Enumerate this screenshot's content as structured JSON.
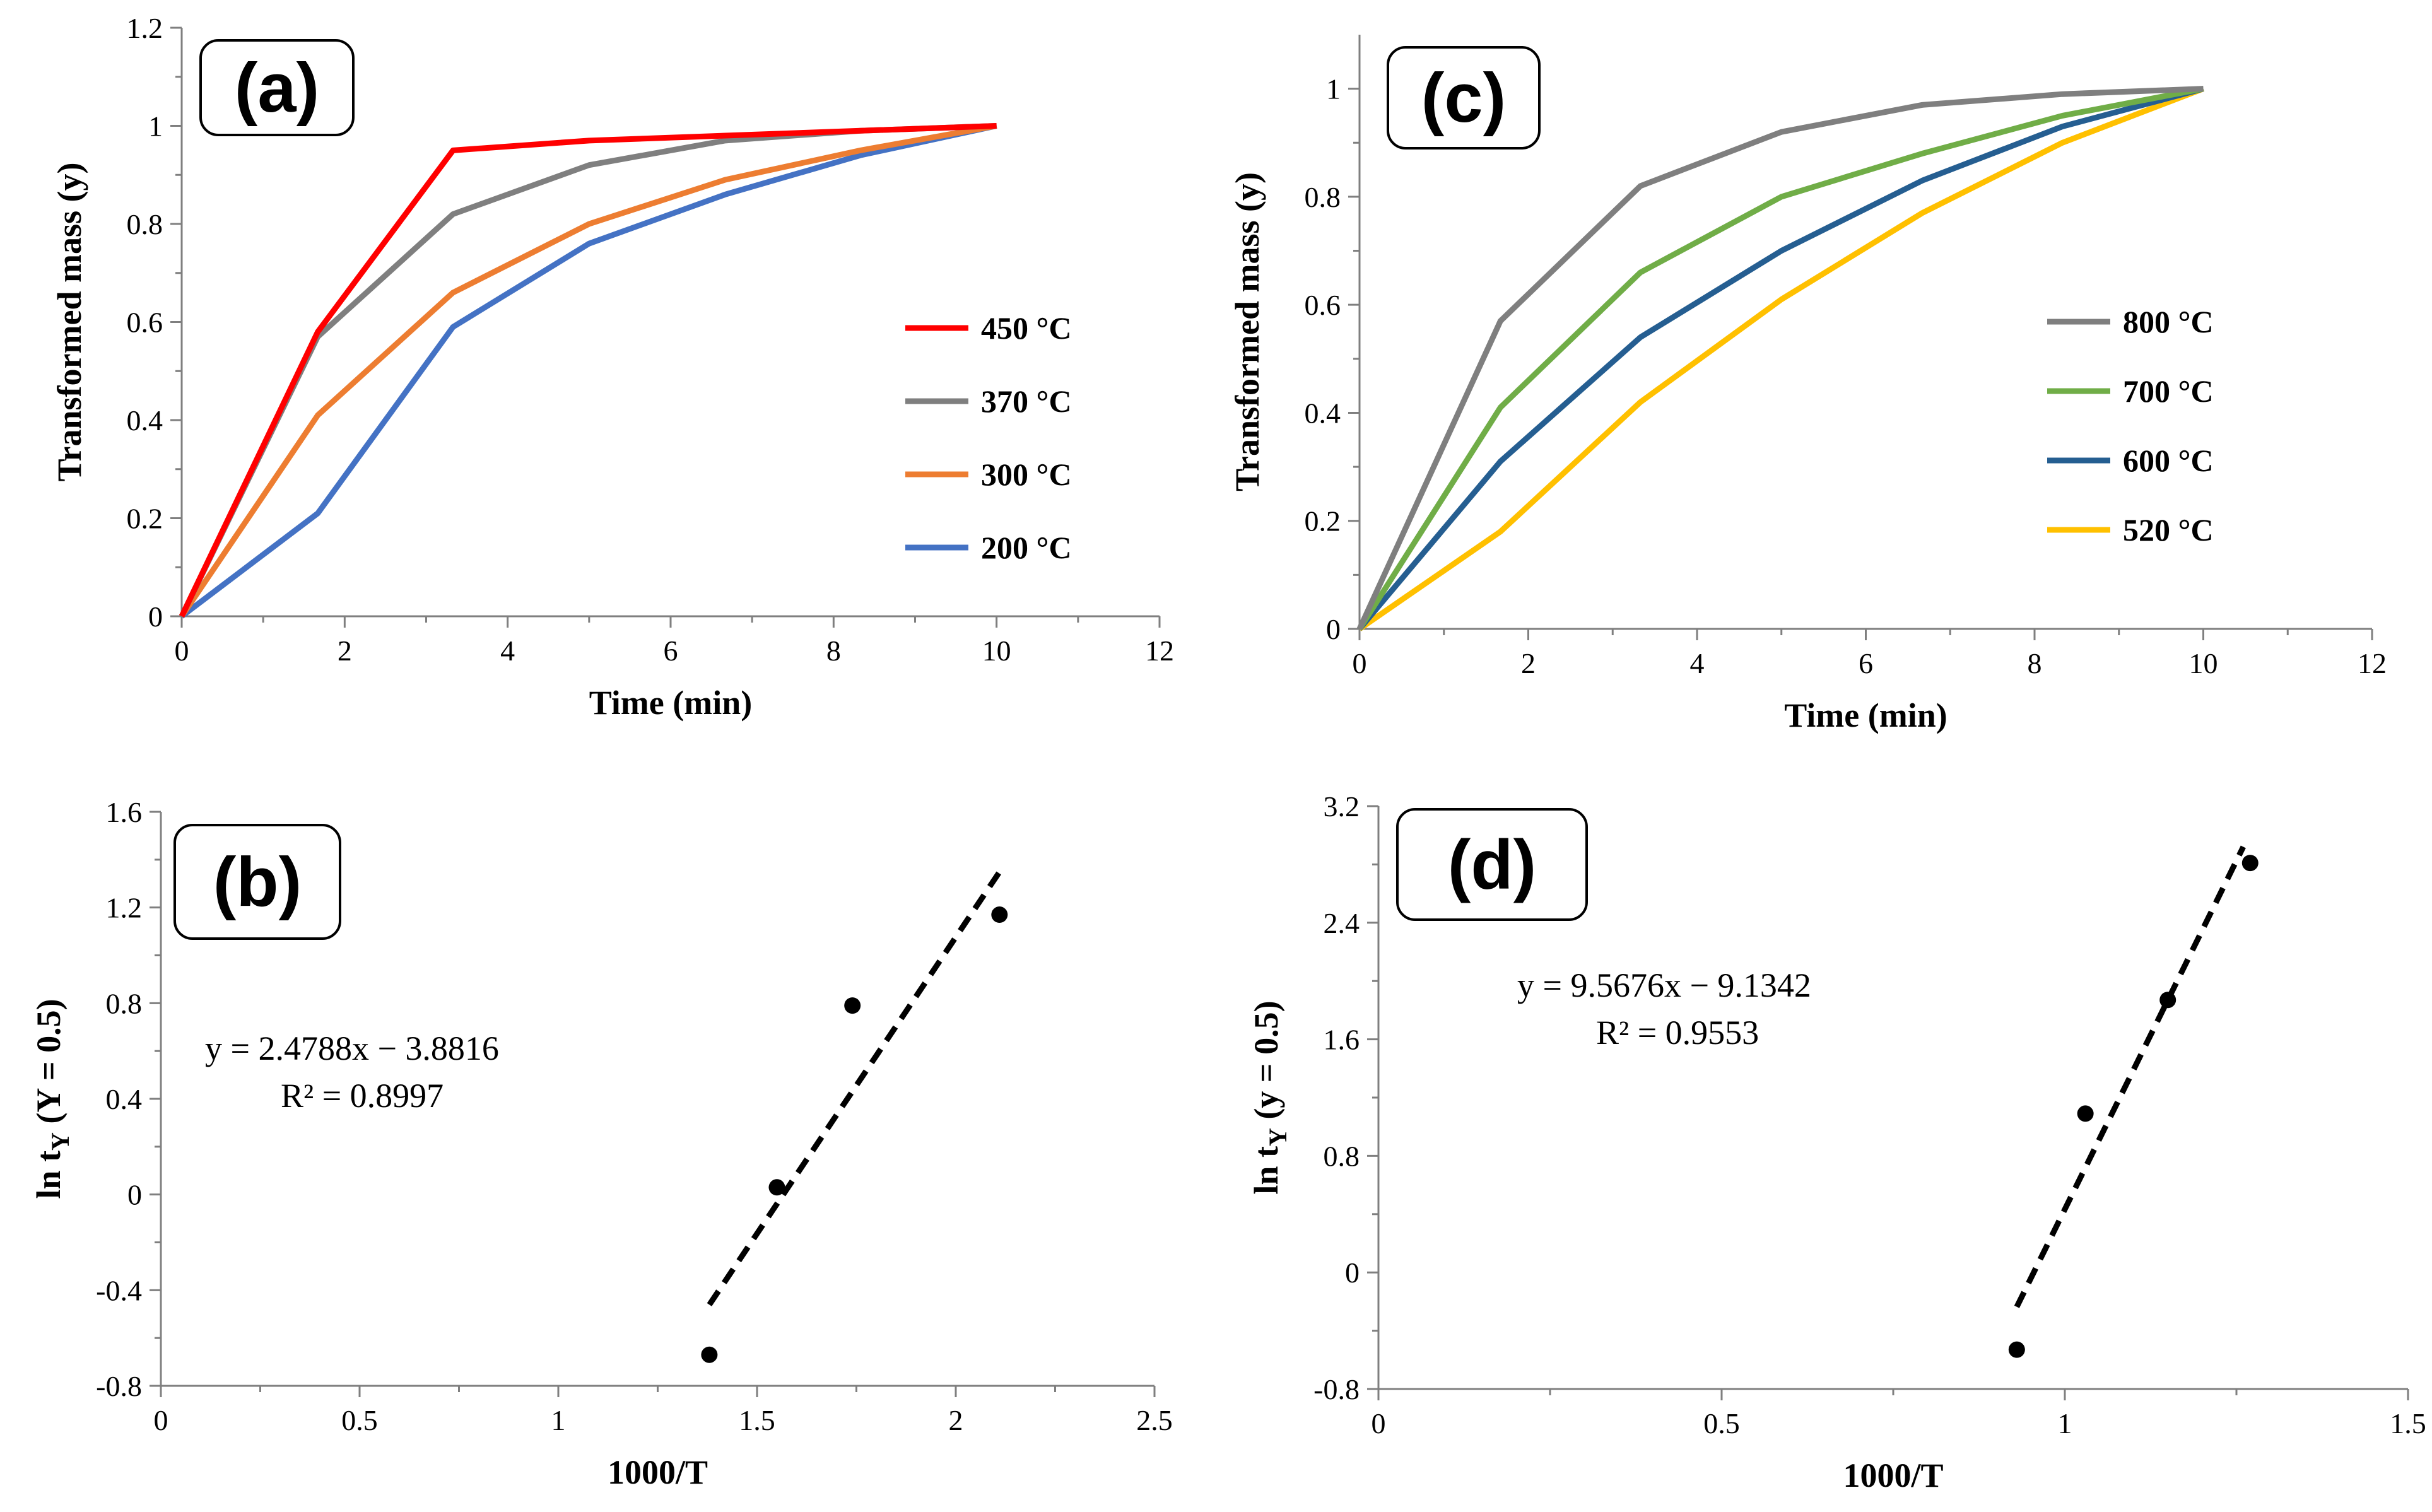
{
  "chart_data": [
    {
      "id": "a",
      "type": "line",
      "panel_label": "(a)",
      "xlabel": "Time  (min)",
      "ylabel": "Transformed  mass  (y)",
      "xlim": [
        0,
        12
      ],
      "ylim": [
        0,
        1.2
      ],
      "xticks": [
        0,
        2,
        4,
        6,
        8,
        10,
        12
      ],
      "xtick_labels": [
        "0",
        "2",
        "4",
        "6",
        "8",
        "10",
        "12"
      ],
      "yticks": [
        0,
        0.2,
        0.4,
        0.6,
        0.8,
        1,
        1.2
      ],
      "ytick_labels": [
        "0",
        "0.2",
        "0.4",
        "0.6",
        "0.8",
        "1",
        "1.2"
      ],
      "legend_position": "right",
      "series": [
        {
          "name": "450 °C",
          "color": "#ff0000",
          "x": [
            0,
            1.67,
            3.33,
            5,
            6.67,
            8.33,
            10
          ],
          "y": [
            0,
            0.58,
            0.95,
            0.97,
            0.98,
            0.99,
            1.0
          ]
        },
        {
          "name": "370 °C",
          "color": "#7f7f7f",
          "x": [
            0,
            1.67,
            3.33,
            5,
            6.67,
            8.33,
            10
          ],
          "y": [
            0,
            0.57,
            0.82,
            0.92,
            0.97,
            0.99,
            1.0
          ]
        },
        {
          "name": "300 °C",
          "color": "#ed7d31",
          "x": [
            0,
            1.67,
            3.33,
            5,
            6.67,
            8.33,
            10
          ],
          "y": [
            0,
            0.41,
            0.66,
            0.8,
            0.89,
            0.95,
            1.0
          ]
        },
        {
          "name": "200 °C",
          "color": "#4472c4",
          "x": [
            0,
            1.67,
            3.33,
            5,
            6.67,
            8.33,
            10
          ],
          "y": [
            0,
            0.21,
            0.59,
            0.76,
            0.86,
            0.94,
            1.0
          ]
        }
      ]
    },
    {
      "id": "c",
      "type": "line",
      "panel_label": "(c)",
      "xlabel": "Time  (min)",
      "ylabel": "Transformed  mass  (y)",
      "xlim": [
        0,
        12
      ],
      "ylim": [
        0,
        1.1
      ],
      "xticks": [
        0,
        2,
        4,
        6,
        8,
        10,
        12
      ],
      "xtick_labels": [
        "0",
        "2",
        "4",
        "6",
        "8",
        "10",
        "12"
      ],
      "yticks": [
        0,
        0.2,
        0.4,
        0.6,
        0.8,
        1
      ],
      "ytick_labels": [
        "0",
        "0.2",
        "0.4",
        "0.6",
        "0.8",
        "1"
      ],
      "legend_position": "right",
      "series": [
        {
          "name": "800 °C",
          "color": "#7f7f7f",
          "x": [
            0,
            1.67,
            3.33,
            5,
            6.67,
            8.33,
            10
          ],
          "y": [
            0,
            0.57,
            0.82,
            0.92,
            0.97,
            0.99,
            1.0
          ]
        },
        {
          "name": "700 °C",
          "color": "#70ad47",
          "x": [
            0,
            1.67,
            3.33,
            5,
            6.67,
            8.33,
            10
          ],
          "y": [
            0,
            0.41,
            0.66,
            0.8,
            0.88,
            0.95,
            1.0
          ]
        },
        {
          "name": "600 °C",
          "color": "#255e91",
          "x": [
            0,
            1.67,
            3.33,
            5,
            6.67,
            8.33,
            10
          ],
          "y": [
            0,
            0.31,
            0.54,
            0.7,
            0.83,
            0.93,
            1.0
          ]
        },
        {
          "name": "520 °C",
          "color": "#ffc000",
          "x": [
            0,
            1.67,
            3.33,
            5,
            6.67,
            8.33,
            10
          ],
          "y": [
            0,
            0.18,
            0.42,
            0.61,
            0.77,
            0.9,
            1.0
          ]
        }
      ]
    },
    {
      "id": "b",
      "type": "scatter",
      "panel_label": "(b)",
      "xlabel": "1000/T",
      "ylabel_main": "ln t",
      "ylabel_sub": "Y",
      "ylabel_tail": " (Y = 0.5)",
      "xlim": [
        0,
        2.5
      ],
      "ylim": [
        -0.8,
        1.6
      ],
      "xticks": [
        0,
        0.5,
        1,
        1.5,
        2,
        2.5
      ],
      "xtick_labels": [
        "0",
        "0.5",
        "1",
        "1.5",
        "2",
        "2.5"
      ],
      "yticks": [
        -0.8,
        -0.4,
        0,
        0.4,
        0.8,
        1.2,
        1.6
      ],
      "ytick_labels": [
        "-0.8",
        "-0.4",
        "0",
        "0.4",
        "0.8",
        "1.2",
        "1.6"
      ],
      "points": {
        "x": [
          1.38,
          1.55,
          1.74,
          2.11
        ],
        "y": [
          -0.67,
          0.03,
          0.79,
          1.17
        ]
      },
      "trendline": {
        "slope": 2.4788,
        "intercept": -3.8816,
        "x_range": [
          1.38,
          2.11
        ]
      },
      "equation": "y = 2.4788x − 3.8816",
      "r_squared": "R² = 0.8997"
    },
    {
      "id": "d",
      "type": "scatter",
      "panel_label": "(d)",
      "xlabel": "1000/T",
      "ylabel_main": "ln t",
      "ylabel_sub": "Y",
      "ylabel_tail": " (y = 0.5)",
      "xlim": [
        0,
        1.5
      ],
      "ylim": [
        -0.8,
        3.2
      ],
      "xticks": [
        0,
        0.5,
        1,
        1.5
      ],
      "xtick_labels": [
        "0",
        "0.5",
        "1",
        "1.5"
      ],
      "yticks": [
        -0.8,
        0,
        0.8,
        1.6,
        2.4,
        3.2
      ],
      "ytick_labels": [
        "-0.8",
        "0",
        "0.8",
        "1.6",
        "2.4",
        "3.2"
      ],
      "points": {
        "x": [
          0.93,
          1.03,
          1.15,
          1.27
        ],
        "y": [
          -0.53,
          1.09,
          1.87,
          2.81
        ]
      },
      "trendline": {
        "slope": 9.5676,
        "intercept": -9.1342,
        "x_range": [
          0.93,
          1.26
        ]
      },
      "equation": "y = 9.5676x − 9.1342",
      "r_squared": "R² = 0.9553"
    }
  ]
}
